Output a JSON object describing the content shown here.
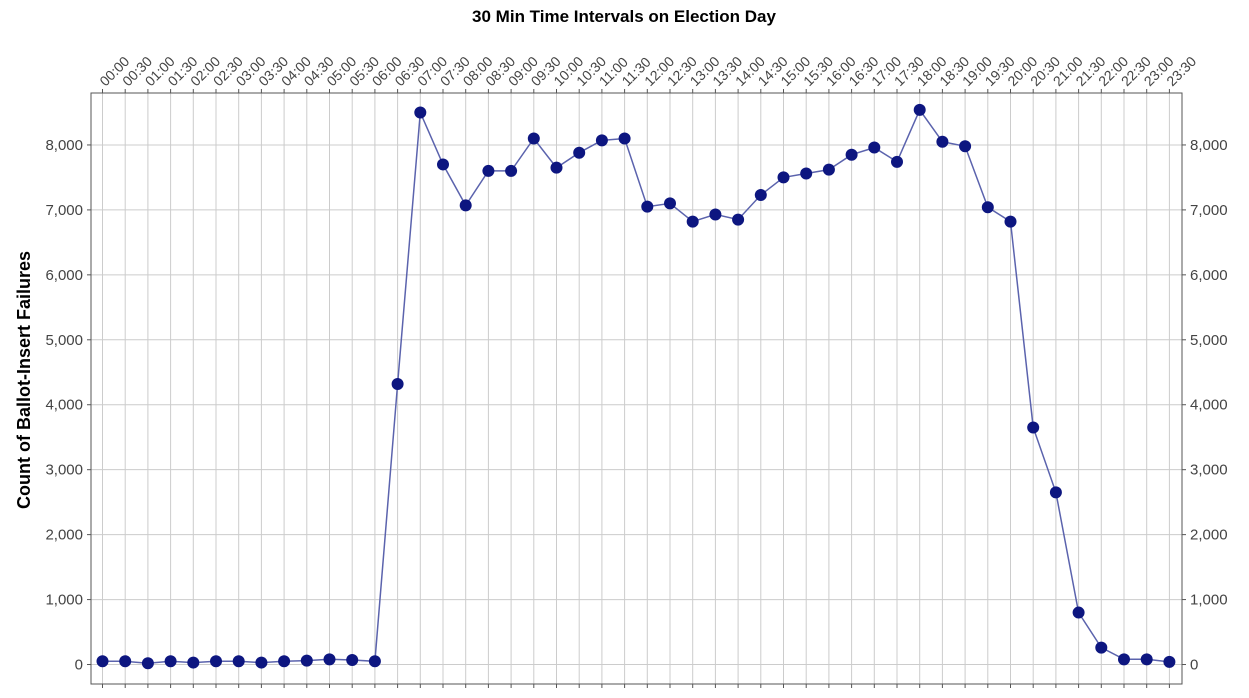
{
  "chart_data": {
    "type": "line",
    "title": "30 Min Time Intervals on Election Day",
    "xlabel": "",
    "ylabel": "Count of Ballot-Insert Failures",
    "ylim": [
      -300,
      8800
    ],
    "yticks": [
      0,
      1000,
      2000,
      3000,
      4000,
      5000,
      6000,
      7000,
      8000
    ],
    "ytick_labels": [
      "0",
      "1,000",
      "2,000",
      "3,000",
      "4,000",
      "5,000",
      "6,000",
      "7,000",
      "8,000"
    ],
    "categories": [
      "00:00",
      "00:30",
      "01:00",
      "01:30",
      "02:00",
      "02:30",
      "03:00",
      "03:30",
      "04:00",
      "04:30",
      "05:00",
      "05:30",
      "06:00",
      "06:30",
      "07:00",
      "07:30",
      "08:00",
      "08:30",
      "09:00",
      "09:30",
      "10:00",
      "10:30",
      "11:00",
      "11:30",
      "12:00",
      "12:30",
      "13:00",
      "13:30",
      "14:00",
      "14:30",
      "15:00",
      "15:30",
      "16:00",
      "16:30",
      "17:00",
      "17:30",
      "18:00",
      "18:30",
      "19:00",
      "19:30",
      "20:00",
      "20:30",
      "21:00",
      "21:30",
      "22:00",
      "22:30",
      "23:00",
      "23:30"
    ],
    "values": [
      50,
      50,
      20,
      50,
      30,
      50,
      50,
      30,
      50,
      60,
      80,
      70,
      50,
      4320,
      8500,
      7700,
      7070,
      7600,
      7600,
      8100,
      7650,
      7880,
      8070,
      8100,
      7050,
      7100,
      6820,
      6930,
      6850,
      7230,
      7500,
      7560,
      7620,
      7850,
      7960,
      7740,
      8540,
      8050,
      7980,
      7040,
      6820,
      3650,
      2650,
      800,
      260,
      80,
      80,
      40
    ],
    "grid": true,
    "legend": "none",
    "colors": {
      "line": "#5b63ad",
      "marker": "#0d1680",
      "grid": "#cccccc",
      "frame": "#555555"
    }
  }
}
